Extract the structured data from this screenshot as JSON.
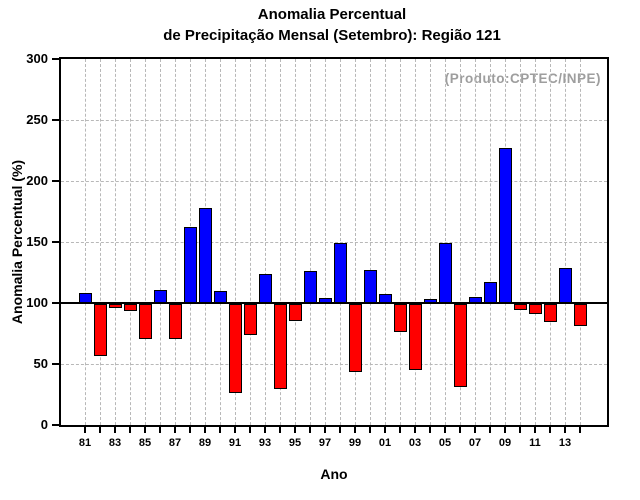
{
  "title": {
    "line1": "Anomalia Percentual",
    "line2": "de Precipitação Mensal (Setembro): Região 121"
  },
  "annotation": "(Produto:CPTEC/INPE)",
  "chart_data": {
    "type": "bar",
    "title": "Anomalia Percentual de Precipitação Mensal (Setembro): Região 121",
    "xlabel": "Ano",
    "ylabel": "Anomalia Percentual (%)",
    "ylim": [
      0,
      300
    ],
    "yticks": [
      0,
      50,
      100,
      150,
      200,
      250,
      300
    ],
    "baseline": 100,
    "grid": "dashed, every year vertical and every 50 horizontal",
    "legend_position": "none",
    "categories": [
      "81",
      "82",
      "83",
      "84",
      "85",
      "86",
      "87",
      "88",
      "89",
      "90",
      "91",
      "92",
      "93",
      "94",
      "95",
      "96",
      "97",
      "98",
      "99",
      "00",
      "01",
      "02",
      "03",
      "04",
      "05",
      "06",
      "07",
      "08",
      "09",
      "10",
      "11",
      "12",
      "13",
      "14"
    ],
    "x_tick_labels_shown": [
      "81",
      "83",
      "85",
      "87",
      "89",
      "91",
      "93",
      "95",
      "97",
      "99",
      "01",
      "03",
      "05",
      "07",
      "09",
      "11",
      "13"
    ],
    "values": [
      108,
      57,
      97,
      94,
      71,
      111,
      71,
      162,
      178,
      110,
      27,
      75,
      124,
      30,
      86,
      126,
      104,
      149,
      44,
      127,
      107,
      77,
      46,
      103,
      149,
      32,
      105,
      117,
      227,
      95,
      92,
      85,
      129,
      82
    ],
    "colors": {
      "above_baseline": "#0000ff",
      "below_baseline": "#ff0000",
      "bar_outline": "#000000",
      "grid": "#b8b8b8",
      "axis": "#000000",
      "annotation_text": "#9e9e9e"
    }
  }
}
